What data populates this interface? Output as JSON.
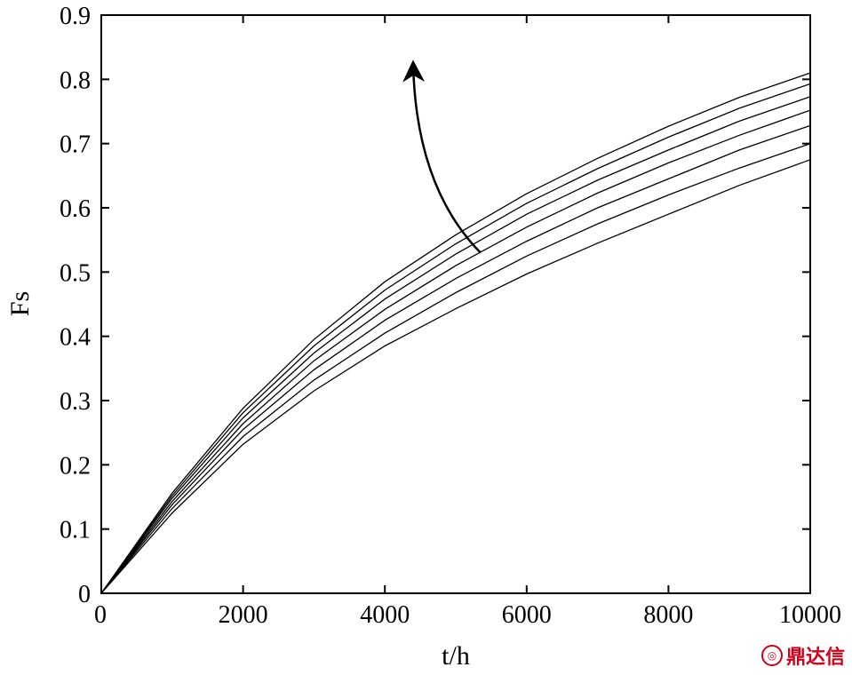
{
  "chart_data": {
    "type": "line",
    "title": "",
    "xlabel": "t/h",
    "ylabel": "Fs",
    "xlim": [
      0,
      10000
    ],
    "ylim": [
      0,
      0.9
    ],
    "x_ticks": [
      "0",
      "2000",
      "4000",
      "6000",
      "8000",
      "10000"
    ],
    "y_ticks": [
      "0",
      "0.1",
      "0.2",
      "0.3",
      "0.4",
      "0.5",
      "0.6",
      "0.7",
      "0.8",
      "0.9"
    ],
    "x": [
      0,
      1000,
      2000,
      3000,
      4000,
      5000,
      6000,
      7000,
      8000,
      9000,
      10000
    ],
    "series": [
      {
        "values": [
          0,
          0.125,
          0.232,
          0.315,
          0.385,
          0.443,
          0.497,
          0.545,
          0.59,
          0.635,
          0.675
        ]
      },
      {
        "values": [
          0,
          0.132,
          0.244,
          0.332,
          0.405,
          0.468,
          0.525,
          0.575,
          0.62,
          0.662,
          0.7
        ]
      },
      {
        "values": [
          0,
          0.138,
          0.255,
          0.348,
          0.425,
          0.49,
          0.548,
          0.6,
          0.645,
          0.69,
          0.728
        ]
      },
      {
        "values": [
          0,
          0.143,
          0.264,
          0.362,
          0.442,
          0.51,
          0.57,
          0.623,
          0.67,
          0.713,
          0.752
        ]
      },
      {
        "values": [
          0,
          0.148,
          0.273,
          0.374,
          0.458,
          0.528,
          0.59,
          0.643,
          0.69,
          0.735,
          0.773
        ]
      },
      {
        "values": [
          0,
          0.152,
          0.281,
          0.385,
          0.472,
          0.544,
          0.607,
          0.661,
          0.71,
          0.755,
          0.793
        ]
      },
      {
        "values": [
          0,
          0.156,
          0.288,
          0.395,
          0.485,
          0.558,
          0.622,
          0.677,
          0.727,
          0.772,
          0.81
        ]
      }
    ],
    "annotations": [
      {
        "type": "arrow",
        "from": [
          5350,
          0.53
        ],
        "to": [
          4400,
          0.82
        ]
      }
    ],
    "grid": false,
    "legend": "none"
  },
  "watermark": {
    "text": "鼎达信",
    "icon": "logo-icon"
  }
}
